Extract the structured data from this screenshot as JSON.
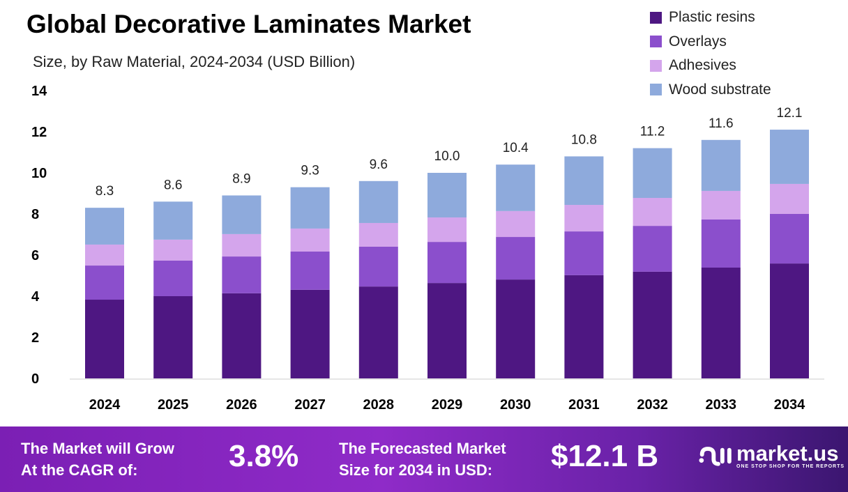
{
  "chart_data": {
    "type": "bar",
    "stacked": true,
    "title": "Global Decorative Laminates Market",
    "subtitle": "Size, by Raw Material, 2024-2034 (USD Billion)",
    "categories": [
      "2024",
      "2025",
      "2026",
      "2027",
      "2028",
      "2029",
      "2030",
      "2031",
      "2032",
      "2033",
      "2034"
    ],
    "series": [
      {
        "name": "Plastic resins",
        "color": "#4e1782",
        "values": [
          3.83,
          4.0,
          4.14,
          4.31,
          4.47,
          4.64,
          4.81,
          5.02,
          5.19,
          5.39,
          5.59
        ]
      },
      {
        "name": "Overlays",
        "color": "#8b4fcc",
        "values": [
          1.66,
          1.73,
          1.79,
          1.86,
          1.94,
          2.0,
          2.07,
          2.13,
          2.23,
          2.34,
          2.41
        ]
      },
      {
        "name": "Adhesives",
        "color": "#d4a5ec",
        "values": [
          1.02,
          1.02,
          1.09,
          1.12,
          1.15,
          1.19,
          1.26,
          1.29,
          1.36,
          1.39,
          1.46
        ]
      },
      {
        "name": "Wood substrate",
        "color": "#8eaadc",
        "values": [
          1.79,
          1.85,
          1.88,
          2.01,
          2.04,
          2.17,
          2.26,
          2.36,
          2.42,
          2.48,
          2.64
        ]
      }
    ],
    "totals": [
      "8.3",
      "8.6",
      "8.9",
      "9.3",
      "9.6",
      "10.0",
      "10.4",
      "10.8",
      "11.2",
      "11.6",
      "12.1"
    ],
    "yticks": [
      "0",
      "2",
      "4",
      "6",
      "8",
      "10",
      "12",
      "14"
    ],
    "ylim": [
      0,
      14
    ],
    "grid": false,
    "legend_position": "top-right"
  },
  "footer": {
    "cagr_label_1": "The Market will Grow",
    "cagr_label_2": "At the CAGR of:",
    "cagr_value": "3.8%",
    "forecast_label_1": "The Forecasted Market",
    "forecast_label_2": "Size for 2034 in USD:",
    "forecast_value": "$12.1 B",
    "logo_name": "market.us",
    "logo_tagline": "ONE STOP SHOP FOR THE REPORTS"
  }
}
